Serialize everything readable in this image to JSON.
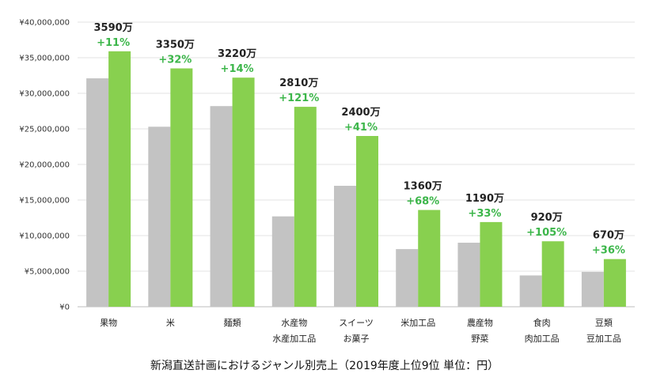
{
  "caption": "新潟直送計画におけるジャンル別売上（2019年度上位9位 単位：円）",
  "chart_data": {
    "type": "bar",
    "title": "新潟直送計画におけるジャンル別売上（2019年度上位9位 単位：円）",
    "categories": [
      [
        "果物"
      ],
      [
        "米"
      ],
      [
        "麺類"
      ],
      [
        "水産物",
        "水産加工品"
      ],
      [
        "スイーツ",
        "お菓子"
      ],
      [
        "米加工品"
      ],
      [
        "農産物",
        "野菜"
      ],
      [
        "食肉",
        "肉加工品"
      ],
      [
        "豆類",
        "豆加工品"
      ]
    ],
    "series": [
      {
        "values": [
          32100000,
          25300000,
          28200000,
          12700000,
          17000000,
          8100000,
          9000000,
          4400000,
          4900000
        ],
        "color": "#c3c3c3"
      },
      {
        "values": [
          35900000,
          33500000,
          32200000,
          28100000,
          24000000,
          13600000,
          11900000,
          9200000,
          6700000
        ],
        "color": "#88d04f"
      }
    ],
    "total_labels": [
      "3590万",
      "3350万",
      "3220万",
      "2810万",
      "2400万",
      "1360万",
      "1190万",
      "920万",
      "670万"
    ],
    "growth_labels": [
      "+11%",
      "+32%",
      "+14%",
      "+121%",
      "+41%",
      "+68%",
      "+33%",
      "+105%",
      "+36%"
    ],
    "growth_color": "#3cb64a",
    "ylim": [
      0,
      40000000
    ],
    "yticks": [
      0,
      5000000,
      10000000,
      15000000,
      20000000,
      25000000,
      30000000,
      35000000,
      40000000
    ],
    "ytick_labels": [
      "¥0",
      "¥5,000,000",
      "¥10,000,000",
      "¥15,000,000",
      "¥20,000,000",
      "¥25,000,000",
      "¥30,000,000",
      "¥35,000,000",
      "¥40,000,000"
    ],
    "grid": true
  }
}
